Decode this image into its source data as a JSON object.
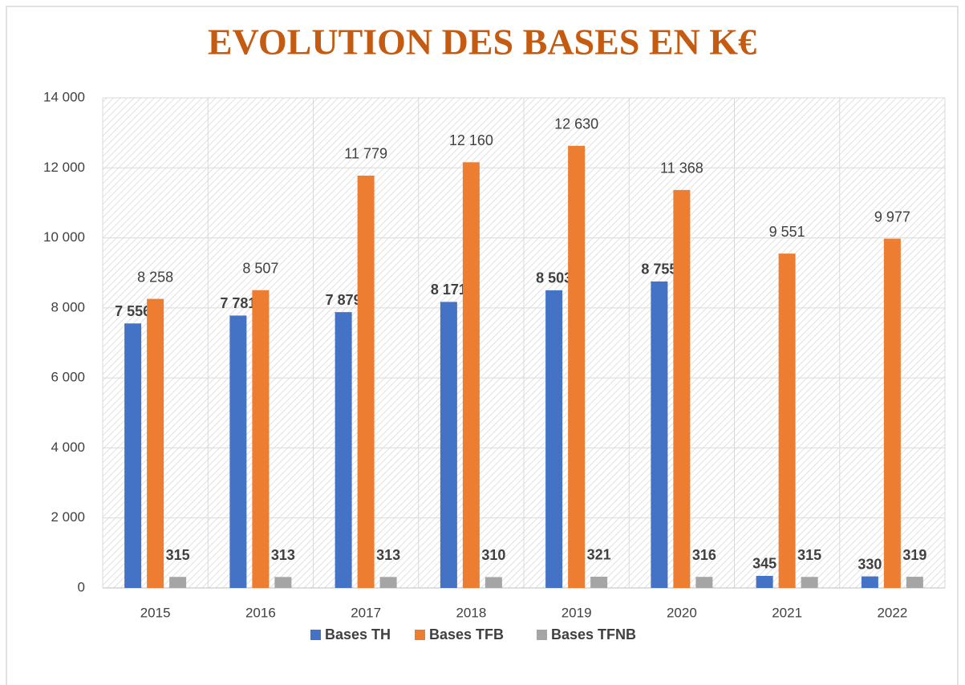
{
  "chart_data": {
    "type": "bar",
    "title": "EVOLUTION DES BASES EN K€",
    "categories": [
      "2015",
      "2016",
      "2017",
      "2018",
      "2019",
      "2020",
      "2021",
      "2022"
    ],
    "series": [
      {
        "name": "Bases TH",
        "color": "#4472c4",
        "values": [
          7556,
          7781,
          7879,
          8171,
          8503,
          8755,
          345,
          330
        ],
        "value_labels": [
          "7 556",
          "7 781",
          "7 879",
          "8 171",
          "8 503",
          "8 755",
          "345",
          "330"
        ]
      },
      {
        "name": "Bases TFB",
        "color": "#ed7d31",
        "values": [
          8258,
          8507,
          11779,
          12160,
          12630,
          11368,
          9551,
          9977
        ],
        "value_labels": [
          "8 258",
          "8 507",
          "11 779",
          "12 160",
          "12 630",
          "11 368",
          "9 551",
          "9 977"
        ]
      },
      {
        "name": "Bases TFNB",
        "color": "#a5a5a5",
        "values": [
          315,
          313,
          313,
          310,
          321,
          316,
          315,
          319
        ],
        "value_labels": [
          "315",
          "313",
          "313",
          "310",
          "321",
          "316",
          "315",
          "319"
        ]
      }
    ],
    "ylim": [
      0,
      14000
    ],
    "yticks": [
      0,
      {
        "value": 2000,
        "label": "2 000"
      },
      {
        "value": 4000,
        "label": "4 000"
      },
      {
        "value": 6000,
        "label": "6 000"
      },
      {
        "value": 8000,
        "label": "8 000"
      },
      {
        "value": 10000,
        "label": "10 000"
      },
      {
        "value": 12000,
        "label": "12 000"
      },
      {
        "value": 14000,
        "label": "14 000"
      }
    ],
    "grid": true,
    "legend": "bottom"
  }
}
